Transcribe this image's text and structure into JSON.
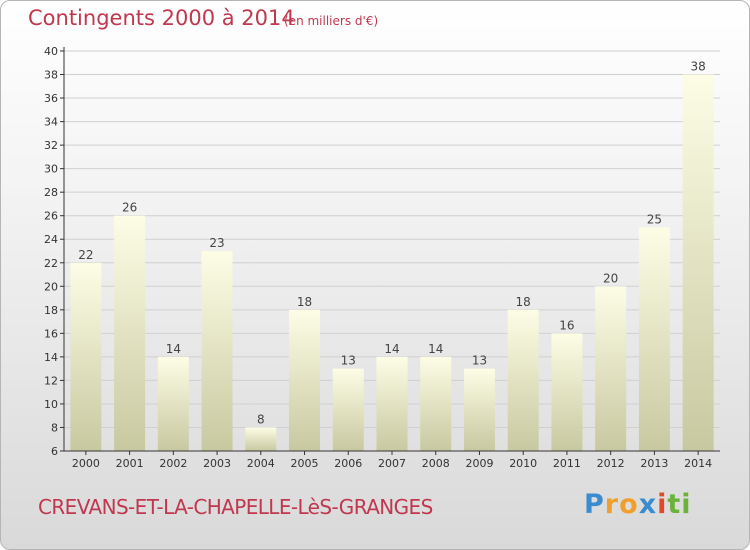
{
  "title": "Contingents 2000 à 2014",
  "subtitle": "(en milliers d'€)",
  "commune": "CREVANS-ET-LA-CHAPELLE-LèS-GRANGES",
  "brand": {
    "letters": [
      "P",
      "r",
      "o",
      "x",
      "i",
      "t",
      "i"
    ],
    "colors": [
      "#3b8bd0",
      "#f0a02a",
      "#f0a02a",
      "#3b8bd0",
      "#e04a2a",
      "#6bb23a",
      "#6bb23a"
    ]
  },
  "colors": {
    "title": "#c0374e",
    "bar_top": "#fdfde6",
    "bar_bottom": "#c8c8a0",
    "axis": "#333333",
    "grid": "#d0d0d0"
  },
  "chart_data": {
    "type": "bar",
    "categories": [
      "2000",
      "2001",
      "2002",
      "2003",
      "2004",
      "2005",
      "2006",
      "2007",
      "2008",
      "2009",
      "2010",
      "2011",
      "2012",
      "2013",
      "2014"
    ],
    "values": [
      22,
      26,
      14,
      23,
      8,
      18,
      13,
      14,
      14,
      13,
      18,
      16,
      20,
      25,
      38
    ],
    "ylim": [
      6,
      40
    ],
    "yticks": [
      6,
      8,
      10,
      12,
      14,
      16,
      18,
      20,
      22,
      24,
      26,
      28,
      30,
      32,
      34,
      36,
      38,
      40
    ],
    "grid": true,
    "data_labels": true
  }
}
